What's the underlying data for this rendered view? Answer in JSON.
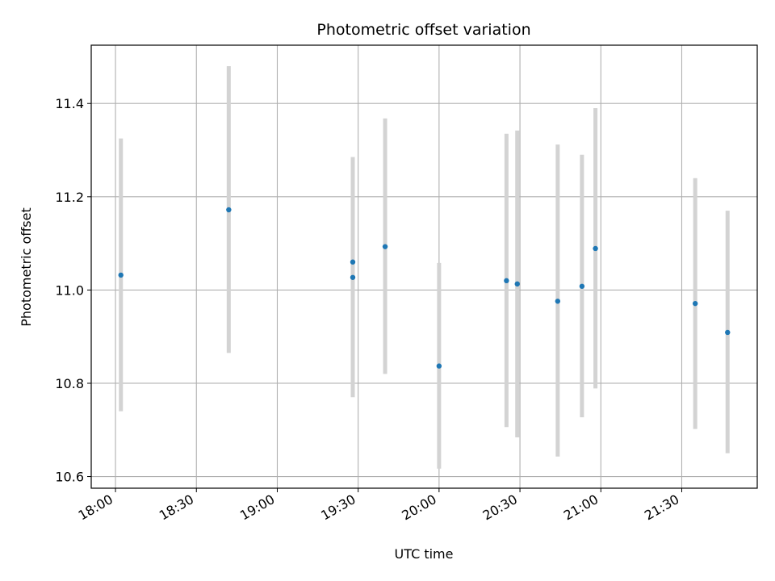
{
  "chart_data": {
    "type": "scatter",
    "title": "Photometric offset variation",
    "xlabel": "UTC time",
    "ylabel": "Photometric offset",
    "x_ticks": [
      "18:00",
      "18:30",
      "19:00",
      "19:30",
      "20:00",
      "20:30",
      "21:00",
      "21:30"
    ],
    "y_ticks": [
      "10.6",
      "10.8",
      "11.0",
      "11.2",
      "11.4"
    ],
    "xlim": [
      "17:51",
      "21:58"
    ],
    "ylim": [
      10.575,
      11.525
    ],
    "grid": true,
    "colors": {
      "point": "#1f77b4",
      "errorbar": "#d3d3d3"
    },
    "points": [
      {
        "x": "18:02",
        "y": 11.032,
        "ymin": 10.74,
        "ymax": 11.325
      },
      {
        "x": "18:42",
        "y": 11.172,
        "ymin": 10.865,
        "ymax": 11.48
      },
      {
        "x": "19:28",
        "y": 11.06,
        "ymin": 10.835,
        "ymax": 11.285
      },
      {
        "x": "19:28",
        "y": 11.027,
        "ymin": 10.77,
        "ymax": 11.285
      },
      {
        "x": "19:40",
        "y": 11.093,
        "ymin": 10.82,
        "ymax": 11.368
      },
      {
        "x": "20:00",
        "y": 10.837,
        "ymin": 10.617,
        "ymax": 11.058
      },
      {
        "x": "20:25",
        "y": 11.02,
        "ymin": 10.706,
        "ymax": 11.335
      },
      {
        "x": "20:29",
        "y": 11.013,
        "ymin": 10.684,
        "ymax": 11.342
      },
      {
        "x": "20:44",
        "y": 10.976,
        "ymin": 10.643,
        "ymax": 11.312
      },
      {
        "x": "20:53",
        "y": 11.008,
        "ymin": 10.727,
        "ymax": 11.29
      },
      {
        "x": "20:58",
        "y": 11.089,
        "ymin": 10.789,
        "ymax": 11.39
      },
      {
        "x": "21:35",
        "y": 10.971,
        "ymin": 10.702,
        "ymax": 11.24
      },
      {
        "x": "21:47",
        "y": 10.909,
        "ymin": 10.65,
        "ymax": 11.17
      }
    ]
  }
}
